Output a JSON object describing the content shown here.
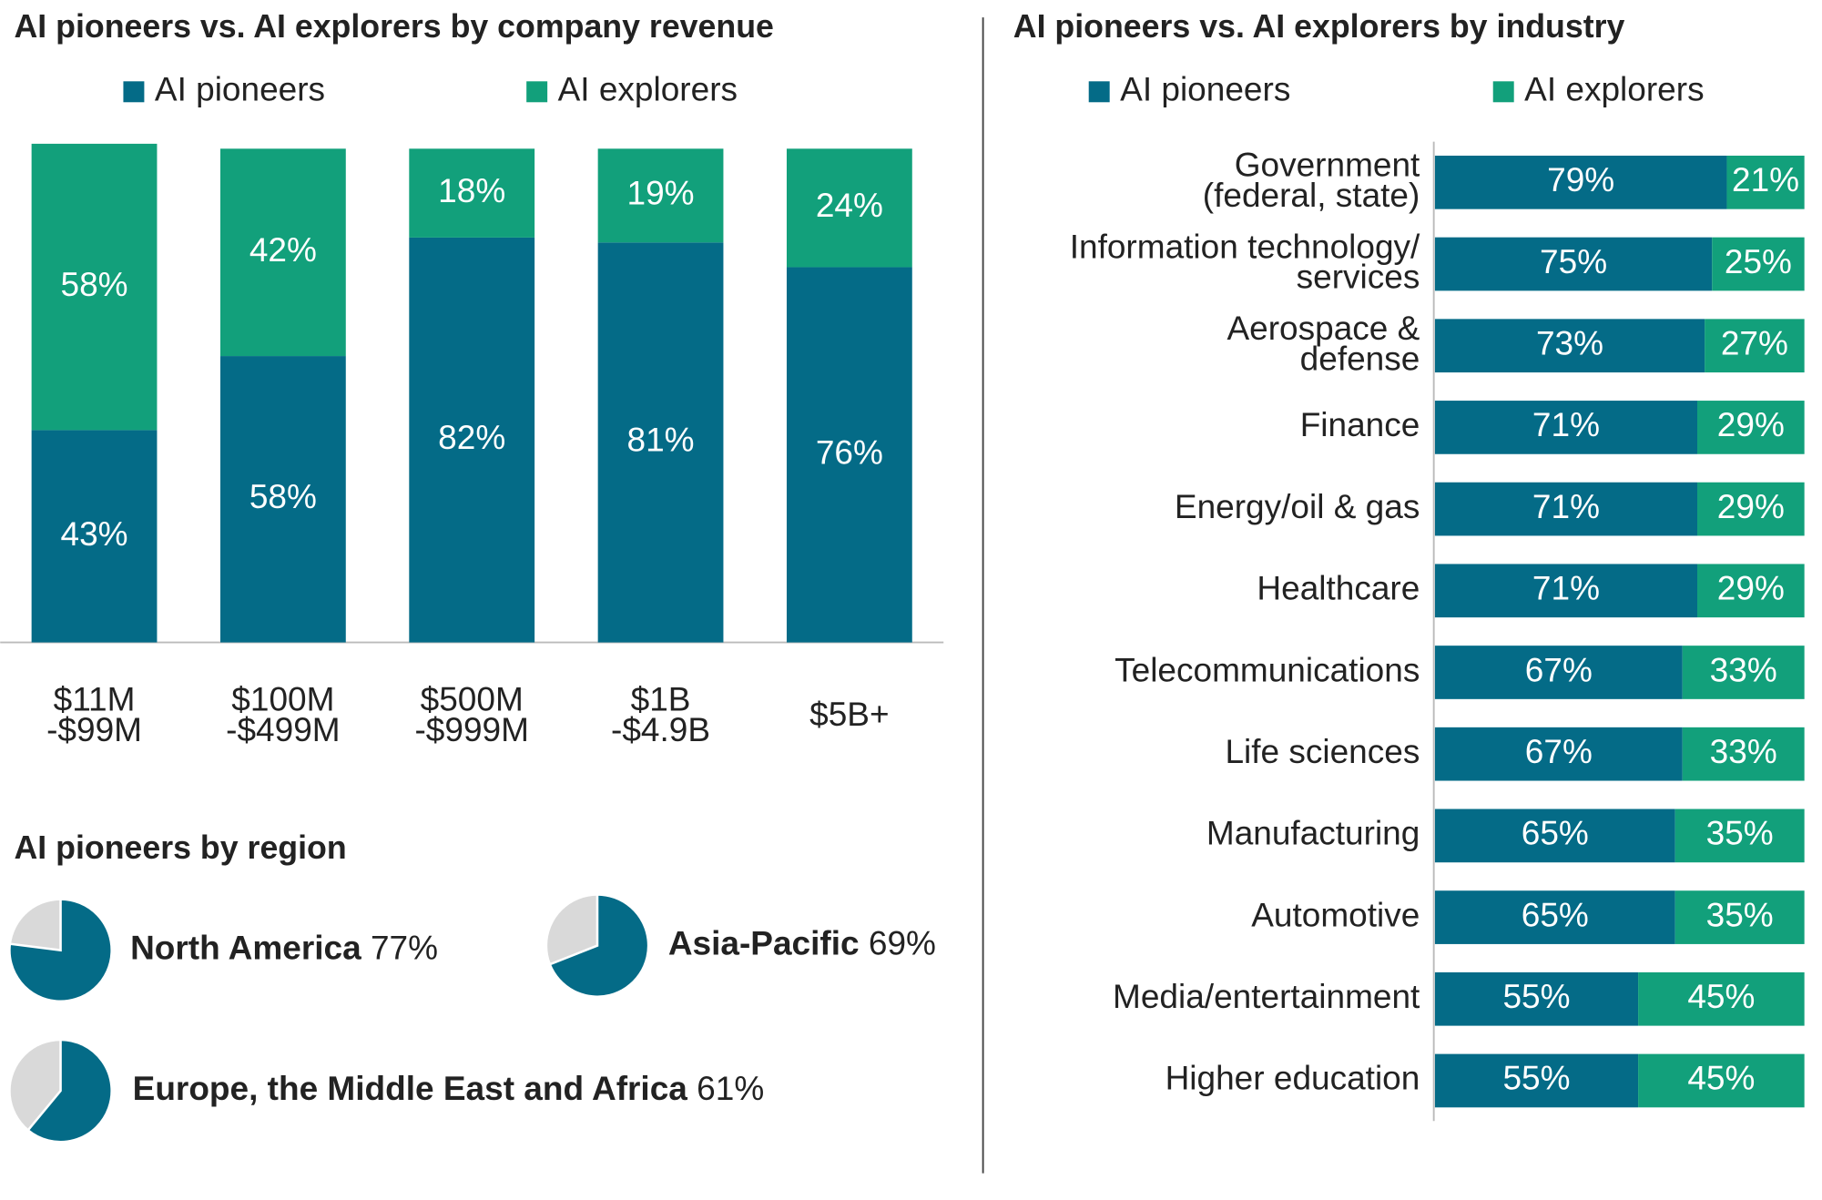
{
  "chart_data": [
    {
      "type": "stacked-bar",
      "title": "AI pioneers vs. AI explorers by company revenue",
      "categories": [
        "$11M\n-$99M",
        "$100M\n-$499M",
        "$500M\n-$999M",
        "$1B\n-$4.9B",
        "$5B+"
      ],
      "series": [
        {
          "name": "AI pioneers",
          "color": "#046b87",
          "values": [
            43,
            58,
            82,
            81,
            76
          ],
          "value_labels": [
            "43%",
            "58%",
            "82%",
            "81%",
            "76%"
          ]
        },
        {
          "name": "AI explorers",
          "color": "#12a07b",
          "values": [
            58,
            42,
            18,
            19,
            24
          ],
          "value_labels": [
            "58%",
            "42%",
            "18%",
            "19%",
            "24%"
          ]
        }
      ],
      "ylim": [
        0,
        100
      ]
    },
    {
      "type": "pie",
      "title": "AI pioneers by region",
      "categories": [
        "North America",
        "Asia-Pacific",
        "Europe, the Middle East and Africa"
      ],
      "values": [
        77,
        69,
        61
      ],
      "value_labels": [
        "77%",
        "69%",
        "61%"
      ],
      "color": "#046b87"
    },
    {
      "type": "stacked-barh",
      "title": "AI pioneers vs. AI explorers by industry",
      "categories": [
        "Government\n(federal, state)",
        "Information technology/\nservices",
        "Aerospace &\ndefense",
        "Finance",
        "Energy/oil & gas",
        "Healthcare",
        "Telecommunications",
        "Life sciences",
        "Manufacturing",
        "Automotive",
        "Media/entertainment",
        "Higher education"
      ],
      "series": [
        {
          "name": "AI pioneers",
          "color": "#046b87",
          "values": [
            79,
            75,
            73,
            71,
            71,
            71,
            67,
            67,
            65,
            65,
            55,
            55
          ],
          "value_labels": [
            "79%",
            "75%",
            "73%",
            "71%",
            "71%",
            "71%",
            "67%",
            "67%",
            "65%",
            "65%",
            "55%",
            "55%"
          ]
        },
        {
          "name": "AI explorers",
          "color": "#12a07b",
          "values": [
            21,
            25,
            27,
            29,
            29,
            29,
            33,
            33,
            35,
            35,
            45,
            45
          ],
          "value_labels": [
            "21%",
            "25%",
            "27%",
            "29%",
            "29%",
            "29%",
            "33%",
            "33%",
            "35%",
            "35%",
            "45%",
            "45%"
          ]
        }
      ],
      "xlim": [
        0,
        100
      ]
    }
  ]
}
